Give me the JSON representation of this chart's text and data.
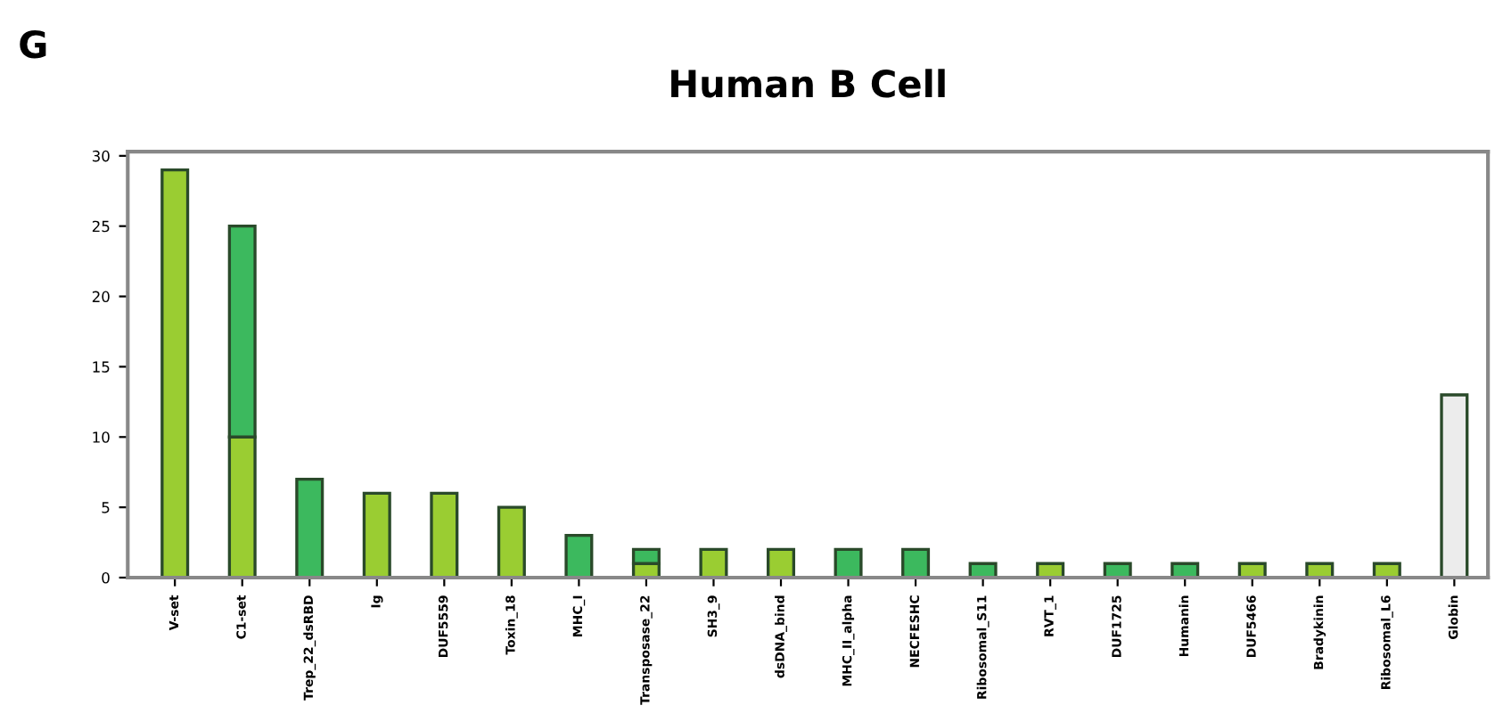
{
  "chart_data": {
    "type": "bar",
    "title": "Human B Cell",
    "annotations": [
      "G"
    ],
    "stacked": true,
    "categories": [
      "V-set",
      "C1-set",
      "Trep_22_dsRBD",
      "Ig",
      "DUF5559",
      "Toxin_18",
      "MHC_I",
      "Transposase_22",
      "SH3_9",
      "dsDNA_bind",
      "MHC_II_alpha",
      "NECFESHC",
      "Ribosomal_S11",
      "RVT_1",
      "DUF1725",
      "Humanin",
      "DUF5466",
      "Bradykinin",
      "Ribosomal_L6",
      "Globin"
    ],
    "series": [
      {
        "color": "#9acd32",
        "colors": [
          "#9acd32",
          "#9acd32",
          "#9acd32",
          "#9acd32",
          "#9acd32",
          "#9acd32",
          "#9acd32",
          "#9acd32",
          "#9acd32",
          "#9acd32",
          "#9acd32",
          "#9acd32",
          "#9acd32",
          "#9acd32",
          "#9acd32",
          "#9acd32",
          "#9acd32",
          "#9acd32",
          "#9acd32",
          "#ececec"
        ],
        "values": [
          29,
          10,
          null,
          6,
          6,
          5,
          null,
          1,
          2,
          2,
          null,
          null,
          null,
          1,
          null,
          null,
          1,
          1,
          1,
          13
        ]
      },
      {
        "color": "#3cb95e",
        "values": [
          null,
          15,
          7,
          null,
          null,
          null,
          3,
          1,
          null,
          null,
          2,
          2,
          1,
          null,
          1,
          1,
          null,
          null,
          null,
          null
        ]
      }
    ],
    "ylim": [
      0,
      30.3
    ],
    "yticks": [
      0,
      5,
      10,
      15,
      20,
      25,
      30
    ],
    "grid": false,
    "legend": false
  }
}
